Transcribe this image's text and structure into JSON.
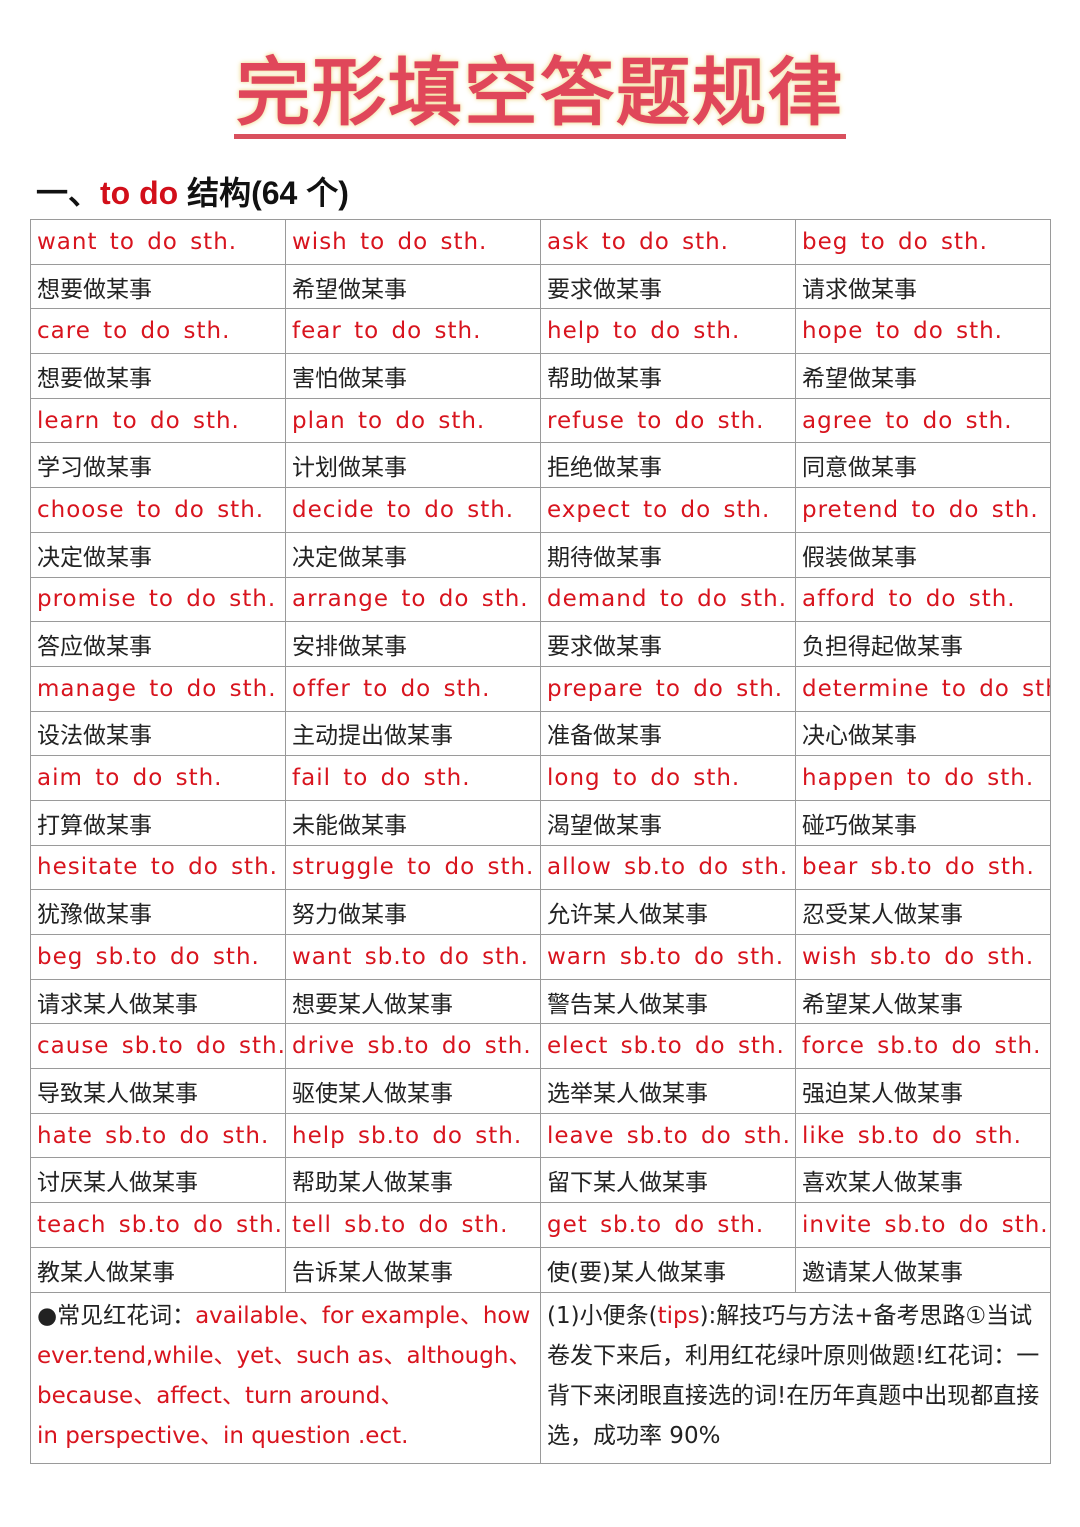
{
  "title": "完形填空答题规律",
  "heading": {
    "prefix": "一、",
    "red": "to do",
    "suffix": "结构(64 个)"
  },
  "rows": [
    [
      "want to do sth.",
      "wish to do sth.",
      "ask to do sth.",
      "beg to do sth."
    ],
    [
      "想要做某事",
      "希望做某事",
      "要求做某事",
      "请求做某事"
    ],
    [
      "care to do sth.",
      "fear to do sth.",
      "help to do sth.",
      "hope to do sth."
    ],
    [
      "想要做某事",
      "害怕做某事",
      "帮助做某事",
      "希望做某事"
    ],
    [
      "learn to do sth.",
      "plan to do sth.",
      "refuse to do sth.",
      "agree to do sth."
    ],
    [
      "学习做某事",
      "计划做某事",
      "拒绝做某事",
      "同意做某事"
    ],
    [
      "choose to do sth.",
      "decide to do sth.",
      "expect to do sth.",
      "pretend to do sth."
    ],
    [
      "决定做某事",
      "决定做某事",
      "期待做某事",
      "假装做某事"
    ],
    [
      "promise to do sth.",
      "arrange to do sth.",
      "demand to do sth.",
      "afford to do sth."
    ],
    [
      "答应做某事",
      "安排做某事",
      "要求做某事",
      "负担得起做某事"
    ],
    [
      "manage to do sth.",
      "offer to do sth.",
      "prepare to do sth.",
      "determine to do sth"
    ],
    [
      "设法做某事",
      "主动提出做某事",
      "准备做某事",
      "决心做某事"
    ],
    [
      "aim to do sth.",
      "fail to do sth.",
      "long to do sth.",
      "happen to do sth."
    ],
    [
      "打算做某事",
      "未能做某事",
      "渴望做某事",
      "碰巧做某事"
    ],
    [
      "hesitate to do sth.",
      "struggle to do sth.",
      "allow sb.to do sth.",
      "bear sb.to do sth."
    ],
    [
      "犹豫做某事",
      "努力做某事",
      "允许某人做某事",
      "忍受某人做某事"
    ],
    [
      "beg sb.to do sth.",
      "want sb.to do sth.",
      "warn sb.to do sth.",
      "wish sb.to do sth."
    ],
    [
      "请求某人做某事",
      "想要某人做某事",
      "警告某人做某事",
      "希望某人做某事"
    ],
    [
      "cause sb.to do sth.",
      "drive sb.to do sth.",
      "elect sb.to do sth.",
      "force sb.to do sth."
    ],
    [
      "导致某人做某事",
      "驱使某人做某事",
      "选举某人做某事",
      "强迫某人做某事"
    ],
    [
      "hate sb.to do sth.",
      "help sb.to do sth.",
      "leave sb.to do sth.",
      "like sb.to do sth."
    ],
    [
      "讨厌某人做某事",
      "帮助某人做某事",
      "留下某人做某事",
      "喜欢某人做某事"
    ],
    [
      "teach sb.to do sth.",
      "tell sb.to do sth.",
      "get sb.to do sth.",
      "invite sb.to do sth."
    ],
    [
      "教某人做某事",
      "告诉某人做某事",
      "使(要)某人做某事",
      "邀请某人做某事"
    ]
  ],
  "notes": {
    "left": {
      "label": "●常见红花词：",
      "words": "available、for example、however.tend,while、yet、such as、although、because、affect、turn around、",
      "last": "in perspective、in question .ect."
    },
    "right": {
      "pre": "(1)小便条(",
      "red": "tips",
      "post": "):解技巧与方法+备考思路①当试卷发下来后，利用红花绿叶原则做题!红花词：一背下来闭眼直接选的词!在历年真题中出现都直接选，成功率 90%"
    }
  }
}
